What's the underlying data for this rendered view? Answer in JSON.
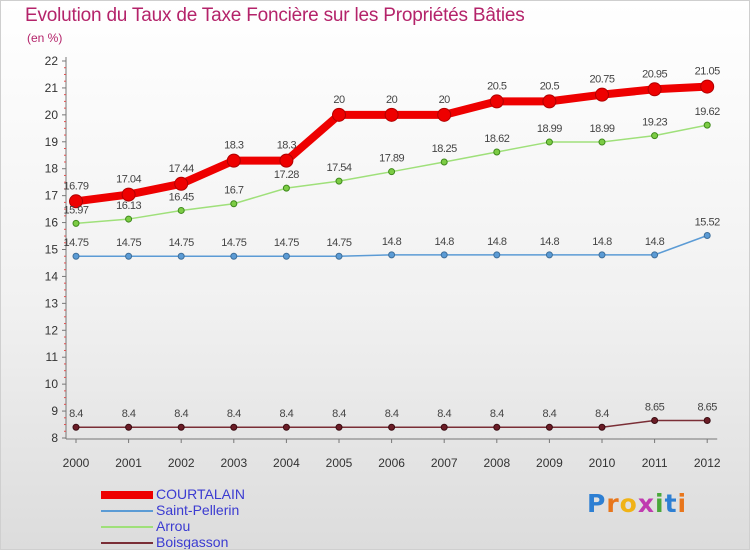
{
  "header": {
    "title": "Evolution du Taux de Taxe Foncière sur les Propriétés Bâties",
    "unit": "(en %)"
  },
  "logo": {
    "text": "Proxiti",
    "letters": [
      "P",
      "r",
      "o",
      "x",
      "i",
      "t",
      "i"
    ],
    "colors": [
      "#2d7fd3",
      "#e8761c",
      "#f0b316",
      "#c03bb0",
      "#4aa83a",
      "#2d7fd3",
      "#e8761c"
    ]
  },
  "chart_data": {
    "type": "line",
    "title": "Evolution du Taux de Taxe Foncière sur les Propriétés Bâties",
    "ylabel": "(en %)",
    "xlabel": "",
    "categories": [
      "2000",
      "2001",
      "2002",
      "2003",
      "2004",
      "2005",
      "2006",
      "2007",
      "2008",
      "2009",
      "2010",
      "2011",
      "2012"
    ],
    "yticks": [
      "8",
      "9",
      "10",
      "11",
      "12",
      "13",
      "14",
      "15",
      "16",
      "17",
      "18",
      "19",
      "20",
      "21",
      "22"
    ],
    "ylim": [
      8,
      22
    ],
    "grid": false,
    "legend_position": "bottom-left",
    "series": [
      {
        "name": "COURTALAIN",
        "color": "#ee0000",
        "values": [
          16.79,
          17.04,
          17.44,
          18.3,
          18.3,
          20,
          20,
          20,
          20.5,
          20.5,
          20.75,
          20.95,
          21.05
        ],
        "labels": [
          "16.79",
          "17.04",
          "17.44",
          "18.3",
          "18.3",
          "20",
          "20",
          "20",
          "20.5",
          "20.5",
          "20.75",
          "20.95",
          "21.05"
        ]
      },
      {
        "name": "Saint-Pellerin",
        "color": "#5b9bd5",
        "values": [
          14.75,
          14.75,
          14.75,
          14.75,
          14.75,
          14.75,
          14.8,
          14.8,
          14.8,
          14.8,
          14.8,
          14.8,
          15.52
        ],
        "labels": [
          "14.75",
          "14.75",
          "14.75",
          "14.75",
          "14.75",
          "14.75",
          "14.8",
          "14.8",
          "14.8",
          "14.8",
          "14.8",
          "14.8",
          "15.52"
        ]
      },
      {
        "name": "Arrou",
        "color": "#9fe07a",
        "values": [
          15.97,
          16.13,
          16.45,
          16.7,
          17.28,
          17.54,
          17.89,
          18.25,
          18.62,
          18.99,
          18.99,
          19.23,
          19.62
        ],
        "labels": [
          "15.97",
          "16.13",
          "16.45",
          "16.7",
          "17.28",
          "17.54",
          "17.89",
          "18.25",
          "18.62",
          "18.99",
          "18.99",
          "19.23",
          "19.62"
        ]
      },
      {
        "name": "Boisgasson",
        "color": "#7a2e36",
        "values": [
          8.4,
          8.4,
          8.4,
          8.4,
          8.4,
          8.4,
          8.4,
          8.4,
          8.4,
          8.4,
          8.4,
          8.65,
          8.65
        ],
        "labels": [
          "8.4",
          "8.4",
          "8.4",
          "8.4",
          "8.4",
          "8.4",
          "8.4",
          "8.4",
          "8.4",
          "8.4",
          "8.4",
          "8.65",
          "8.65"
        ]
      }
    ]
  }
}
